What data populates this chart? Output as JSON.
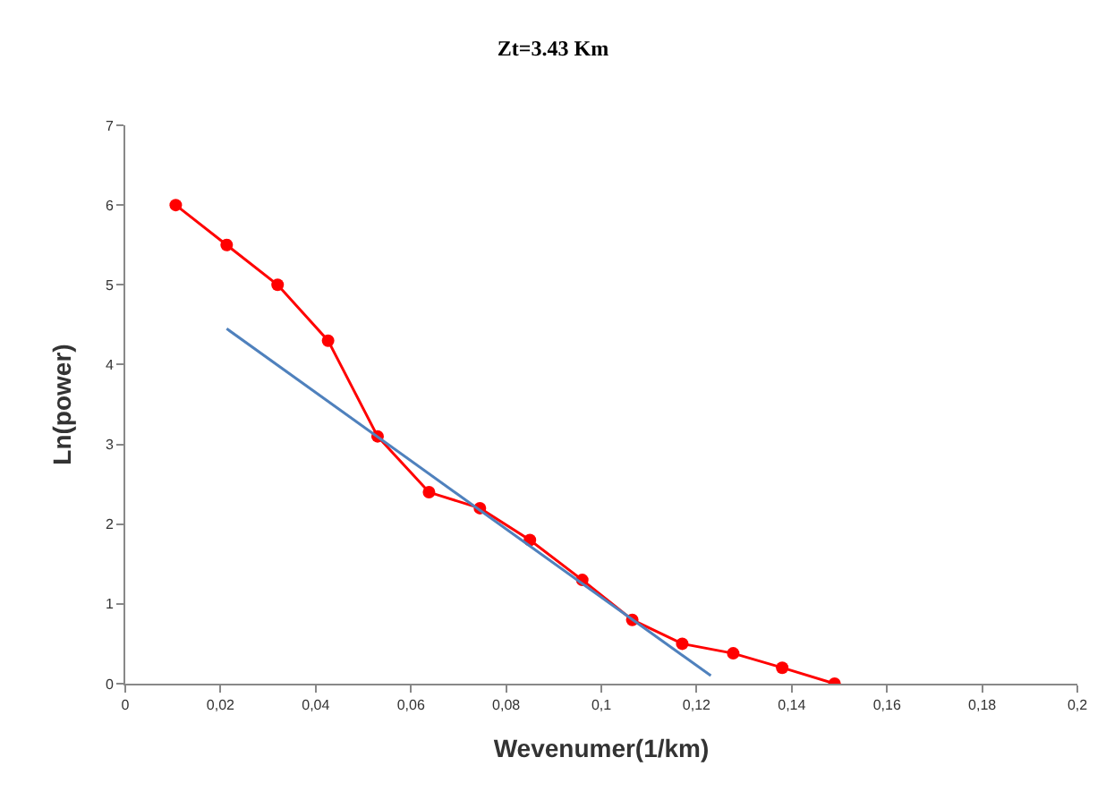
{
  "chart_data": {
    "type": "line",
    "title": "Zt=3.43 Km",
    "xlabel": "Wevenumer(1/km)",
    "ylabel": "Ln(power)",
    "series": [
      {
        "color": "#ff0000",
        "marker": "circle",
        "x": [
          0.0106,
          0.0213,
          0.032,
          0.0426,
          0.053,
          0.0638,
          0.0745,
          0.085,
          0.096,
          0.1065,
          0.117,
          0.1277,
          0.138,
          0.149
        ],
        "values": [
          6,
          5.5,
          5,
          4.3,
          3.1,
          2.4,
          2.2,
          1.8,
          1.3,
          0.8,
          0.5,
          0.38,
          0.2,
          0
        ]
      },
      {
        "color": "#4f81bd",
        "marker": "none",
        "x": [
          0.0213,
          0.123
        ],
        "values": [
          4.45,
          0.1
        ]
      }
    ],
    "xlim": [
      0,
      0.2
    ],
    "ylim": [
      0,
      7
    ],
    "xticks": [
      0,
      {
        "value": 0.02,
        "label": "0,02"
      },
      {
        "value": 0.04,
        "label": "0,04"
      },
      {
        "value": 0.06,
        "label": "0,06"
      },
      {
        "value": 0.08,
        "label": "0,08"
      },
      {
        "value": 0.1,
        "label": "0,1"
      },
      {
        "value": 0.12,
        "label": "0,12"
      },
      {
        "value": 0.14,
        "label": "0,14"
      },
      {
        "value": 0.16,
        "label": "0,16"
      },
      {
        "value": 0.18,
        "label": "0,18"
      },
      {
        "value": 0.2,
        "label": "0,2"
      }
    ],
    "yticks": [
      0,
      1,
      2,
      3,
      4,
      5,
      6,
      7
    ]
  }
}
